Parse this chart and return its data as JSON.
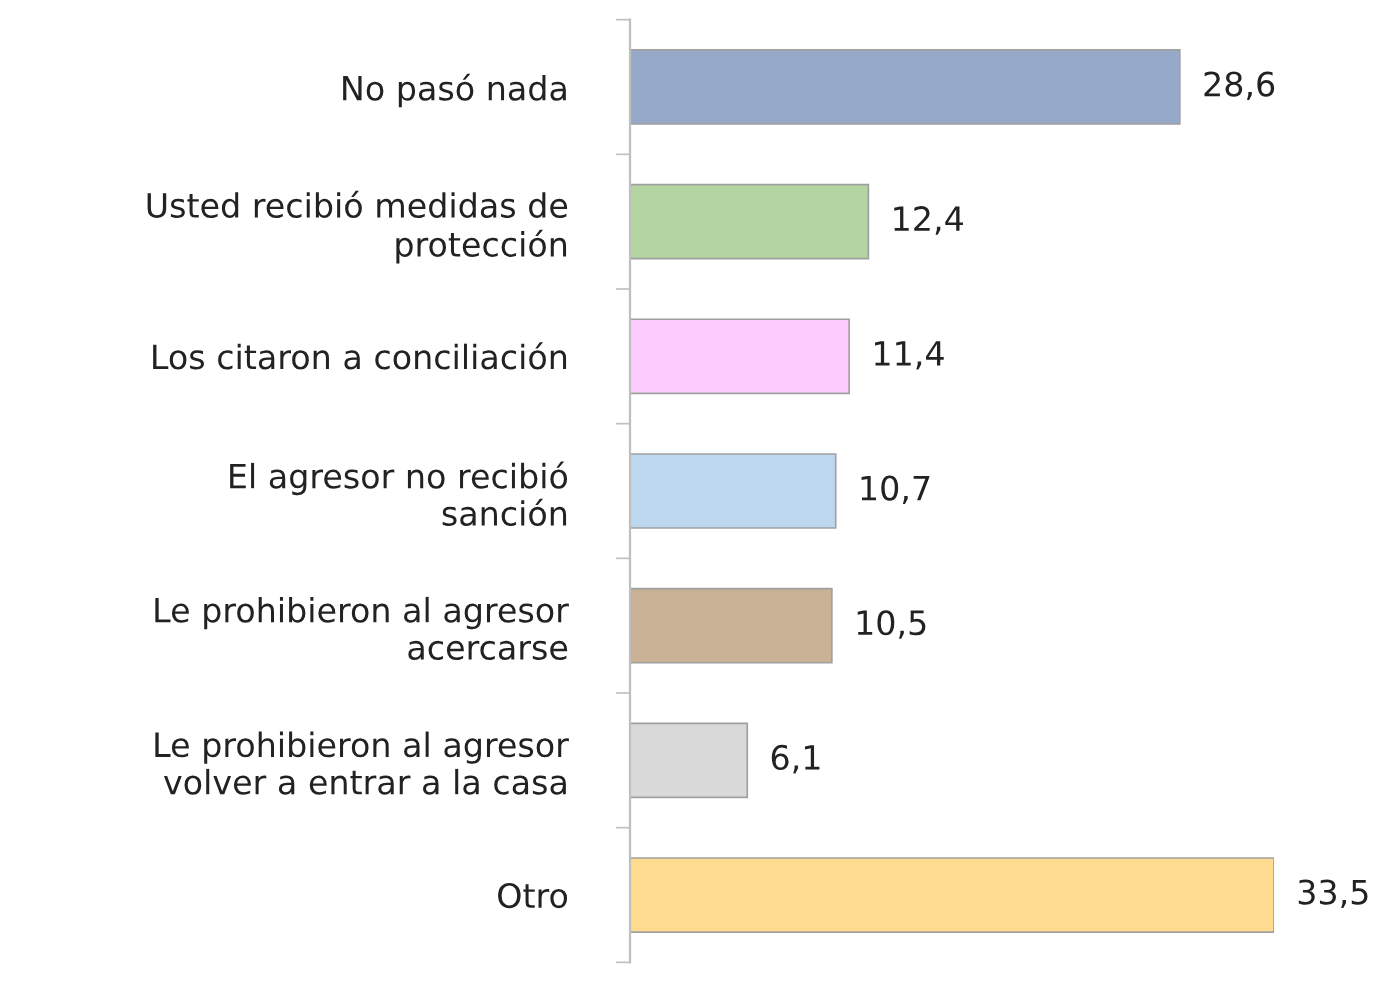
{
  "chart_data": {
    "type": "bar",
    "orientation": "horizontal",
    "value_labels": [
      "28,6",
      "12,4",
      "11,4",
      "10,7",
      "10,5",
      "6,1",
      "33,5"
    ],
    "categories": [
      "No pasó nada",
      "Usted recibió medidas de\nprotección",
      "Los citaron a conciliación",
      "El agresor no recibió\nsanción",
      "Le prohibieron al agresor\nacercarse",
      "Le prohibieron al agresor\nvolver a entrar a la casa",
      "Otro"
    ],
    "values": [
      28.6,
      12.4,
      11.4,
      10.7,
      10.5,
      6.1,
      33.5
    ],
    "colors": [
      "#97a9c9",
      "#b4d5a2",
      "#ffccff",
      "#bdd7ee",
      "#c8b194",
      "#d9d9d9",
      "#ffdb90"
    ]
  }
}
